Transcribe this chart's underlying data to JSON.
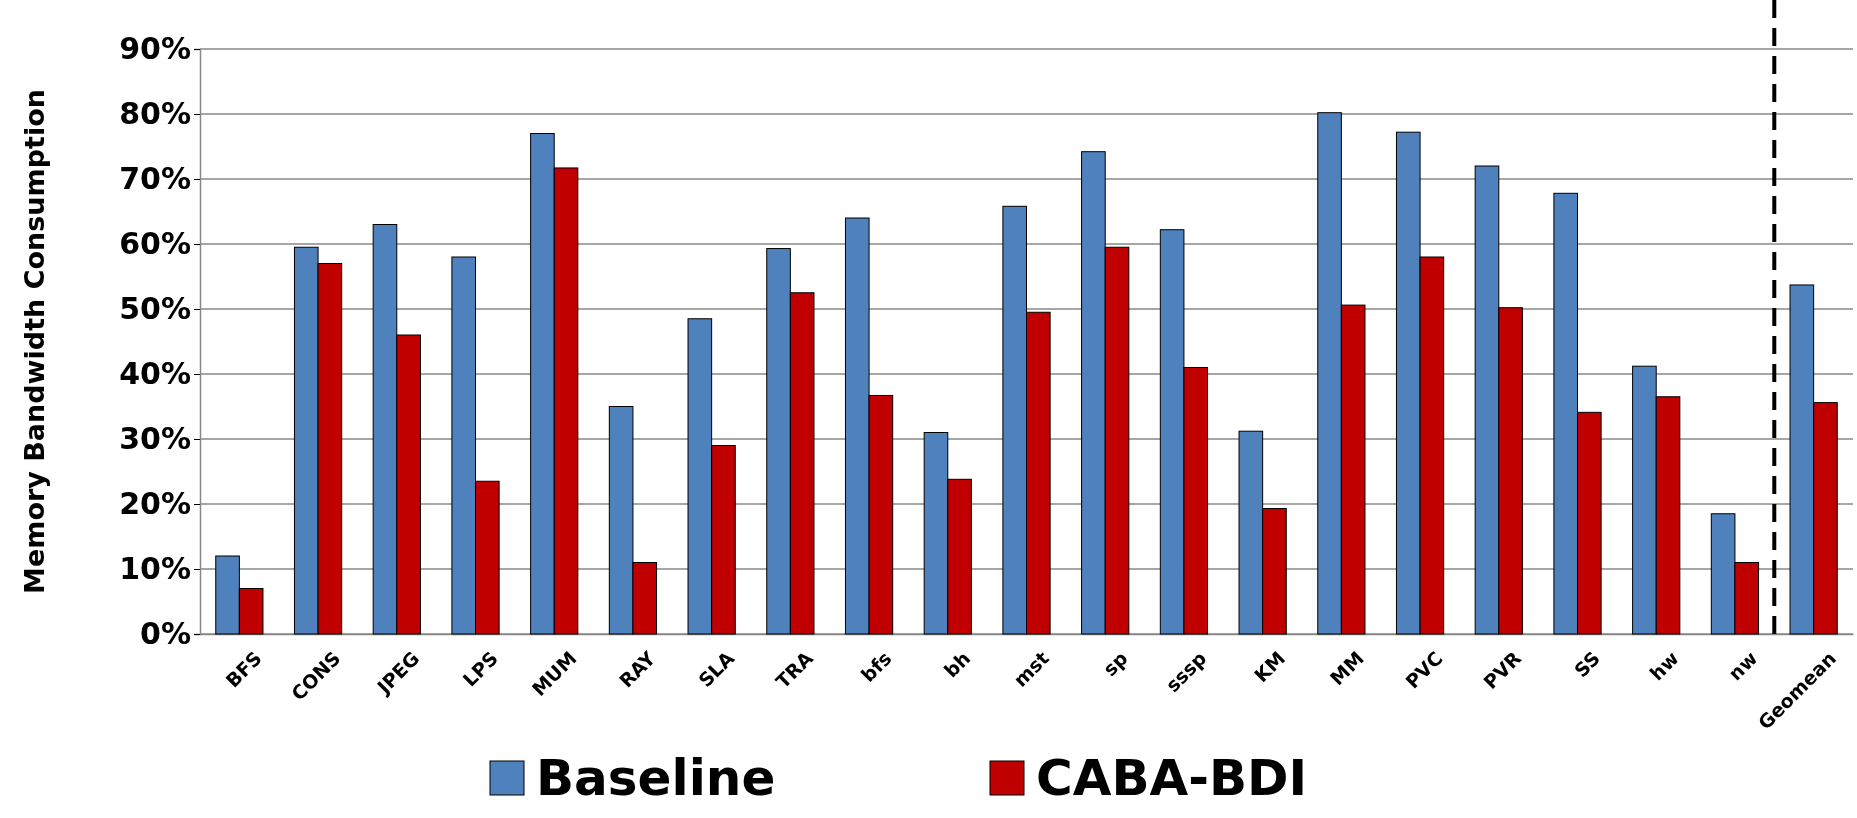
{
  "chart_data": {
    "type": "bar",
    "ylabel": "Memory Bandwidth Consumption",
    "categories": [
      "BFS",
      "CONS",
      "JPEG",
      "LPS",
      "MUM",
      "RAY",
      "SLA",
      "TRA",
      "bfs",
      "bh",
      "mst",
      "sp",
      "sssp",
      "KM",
      "MM",
      "PVC",
      "PVR",
      "SS",
      "hw",
      "nw",
      "Geomean"
    ],
    "series": [
      {
        "name": "Baseline",
        "color": "#4f81bd",
        "values": [
          12,
          59.5,
          63,
          58,
          77,
          35,
          48.5,
          59.3,
          64,
          31,
          65.8,
          74.2,
          62.2,
          31.2,
          80.2,
          77.2,
          72,
          67.8,
          41.2,
          18.5,
          53.7
        ]
      },
      {
        "name": "CABA-BDI",
        "color": "#c00000",
        "values": [
          7,
          57,
          46,
          23.5,
          71.7,
          11,
          29,
          52.5,
          36.7,
          23.8,
          49.5,
          59.5,
          41,
          19.3,
          50.6,
          58,
          50.2,
          34.1,
          36.5,
          11,
          35.6
        ]
      }
    ],
    "ylim": [
      0,
      90
    ],
    "yticks": [
      {
        "value": 0,
        "label": "0%"
      },
      {
        "value": 10,
        "label": "10%"
      },
      {
        "value": 20,
        "label": "20%"
      },
      {
        "value": 30,
        "label": "30%"
      },
      {
        "value": 40,
        "label": "40%"
      },
      {
        "value": 50,
        "label": "50%"
      },
      {
        "value": 60,
        "label": "60%"
      },
      {
        "value": 70,
        "label": "70%"
      },
      {
        "value": 80,
        "label": "80%"
      },
      {
        "value": 90,
        "label": "90%"
      }
    ],
    "grid": "y",
    "legend": "bottom",
    "ref_lines": [
      {
        "axis": "x",
        "value": "Geomean",
        "color": "#000000",
        "line_style": "dashed"
      }
    ]
  }
}
